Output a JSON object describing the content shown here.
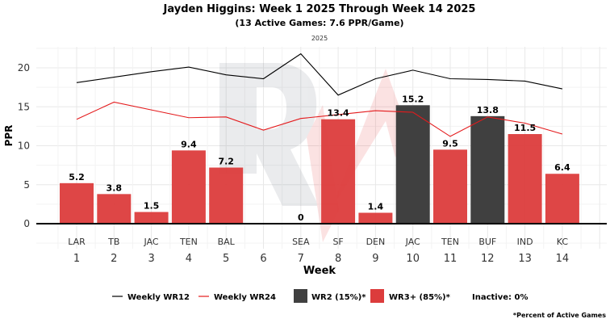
{
  "chart_data": {
    "type": "bar",
    "title": "Jayden Higgins: Week 1 2025 Through Week 14 2025",
    "subtitle": "(13 Active Games: 7.6 PPR/Game)",
    "facet_label": "2025",
    "xlabel": "Week",
    "ylabel": "PPR",
    "ylim": [
      -3,
      23
    ],
    "yticks": [
      0,
      5,
      10,
      15,
      20
    ],
    "weeks": [
      1,
      2,
      3,
      4,
      5,
      6,
      7,
      8,
      9,
      10,
      11,
      12,
      13,
      14
    ],
    "opponents": [
      "LAR",
      "TB",
      "JAC",
      "TEN",
      "BAL",
      "",
      "SEA",
      "SF",
      "DEN",
      "JAC",
      "TEN",
      "BUF",
      "IND",
      "KC"
    ],
    "values": [
      5.2,
      3.8,
      1.5,
      9.4,
      7.2,
      null,
      0,
      13.4,
      1.4,
      15.2,
      9.5,
      13.8,
      11.5,
      6.4
    ],
    "value_labels": [
      "5.2",
      "3.8",
      "1.5",
      "9.4",
      "7.2",
      "",
      "0",
      "13.4",
      "1.4",
      "15.2",
      "9.5",
      "13.8",
      "11.5",
      "6.4"
    ],
    "tiers": [
      "WR3+",
      "WR3+",
      "WR3+",
      "WR3+",
      "WR3+",
      "",
      "WR3+",
      "WR3+",
      "WR3+",
      "WR2",
      "WR3+",
      "WR2",
      "WR3+",
      "WR3+"
    ],
    "series": [
      {
        "name": "Weekly WR12",
        "color": "#000000",
        "values": [
          18.1,
          18.8,
          19.5,
          20.1,
          19.1,
          18.6,
          21.8,
          16.5,
          18.6,
          19.7,
          18.6,
          18.5,
          18.3,
          17.3
        ]
      },
      {
        "name": "Weekly WR24",
        "color": "#e41a1c",
        "values": [
          13.4,
          15.6,
          14.6,
          13.6,
          13.7,
          12.0,
          13.5,
          14.0,
          14.5,
          14.3,
          11.2,
          13.7,
          12.9,
          11.5
        ]
      }
    ],
    "colors": {
      "WR2": "#404040",
      "WR3+": "#dc3c3c"
    },
    "legend": {
      "wr12": "Weekly WR12",
      "wr24": "Weekly WR24",
      "wr2": "WR2 (15%)*",
      "wr3": "WR3+ (85%)*",
      "inactive": "Inactive: 0%"
    },
    "legend_position": "bottom",
    "footnote": "*Percent of Active Games",
    "grid": true
  }
}
